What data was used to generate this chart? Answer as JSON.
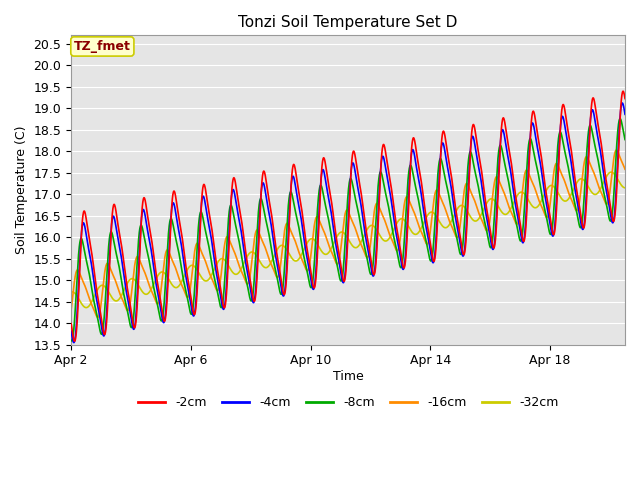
{
  "title": "Tonzi Soil Temperature Set D",
  "xlabel": "Time",
  "ylabel": "Soil Temperature (C)",
  "ylim": [
    13.5,
    20.7
  ],
  "xlim_days": [
    0,
    18.5
  ],
  "annotation_text": "TZ_fmet",
  "annotation_color": "#8B0000",
  "annotation_bg": "#FFFFCC",
  "annotation_border": "#CCCC00",
  "colors": {
    "-2cm": "#FF0000",
    "-4cm": "#0000FF",
    "-8cm": "#00AA00",
    "-16cm": "#FF8C00",
    "-32cm": "#CCCC00"
  },
  "xtick_labels": [
    "Apr 2",
    "Apr 6",
    "Apr 10",
    "Apr 14",
    "Apr 18"
  ],
  "xtick_positions": [
    0,
    4,
    8,
    12,
    16
  ],
  "ytick_values": [
    13.5,
    14.0,
    14.5,
    15.0,
    15.5,
    16.0,
    16.5,
    17.0,
    17.5,
    18.0,
    18.5,
    19.0,
    19.5,
    20.0,
    20.5
  ],
  "grid_color": "#FFFFFF",
  "bg_color": "#E5E5E5",
  "linewidth": 1.2,
  "trend_start": 14.75,
  "trend_slope": 0.155
}
